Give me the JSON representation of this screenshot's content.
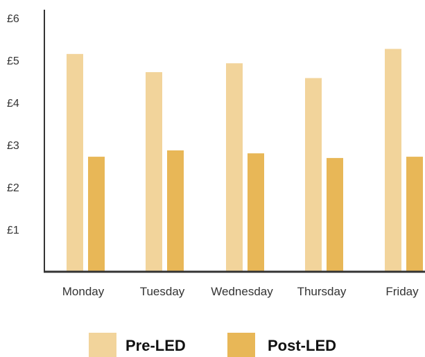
{
  "chart_data": {
    "type": "bar",
    "categories": [
      "Monday",
      "Tuesday",
      "Wednesday",
      "Thursday",
      "Friday"
    ],
    "series": [
      {
        "name": "Pre-LED",
        "values": [
          5.15,
          4.72,
          4.93,
          4.58,
          5.27
        ],
        "color": "#f2d49b"
      },
      {
        "name": "Post-LED",
        "values": [
          2.72,
          2.87,
          2.8,
          2.69,
          2.72
        ],
        "color": "#e8b757"
      }
    ],
    "yticks": [
      "£1",
      "£2",
      "£3",
      "£4",
      "£5",
      "£6"
    ],
    "ytick_values": [
      1,
      2,
      3,
      4,
      5,
      6
    ],
    "ylim": [
      0,
      6.2
    ],
    "grid": false,
    "legend_position": "bottom-center",
    "title": "",
    "xlabel": "",
    "ylabel": ""
  }
}
